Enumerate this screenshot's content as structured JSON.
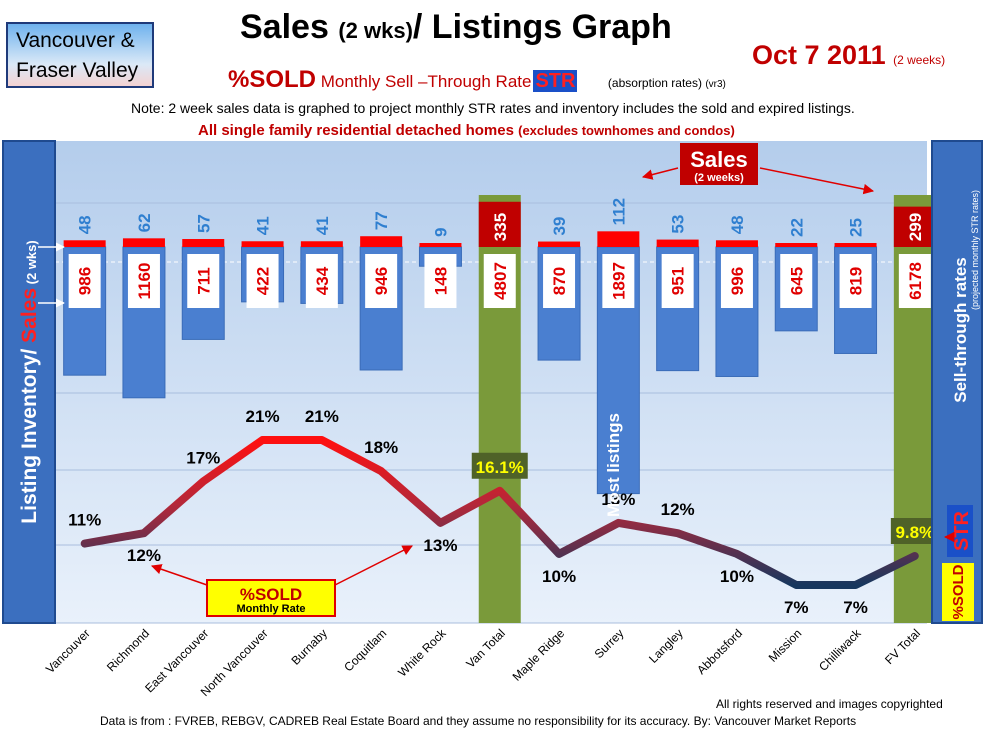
{
  "header": {
    "region_line1": "Vancouver &",
    "region_line2": "Fraser Valley",
    "title_a": "Sales ",
    "title_b": "(2 wks)",
    "title_c": "/ Listings Graph",
    "date": "Oct 7 2011",
    "date_note": "(2 weeks)",
    "sold_label": "%SOLD",
    "str_text": " Monthly Sell –Through Rate",
    "str_badge": "STR",
    "absorption": "(absorption rates)",
    "version": "(vr3)",
    "note": "Note: 2 week sales data is graphed to project monthly STR rates and inventory includes the sold and expired listings.",
    "subtitle_main": "All single family residential detached homes ",
    "subtitle_paren": "(excludes townhomes and condos)"
  },
  "left_panel": {
    "label_a": "Listing Inventory",
    "label_b": "/ ",
    "label_c": "Sales",
    "label_d": " (2 wks)"
  },
  "right_panel": {
    "label_main": "Sell-through rates",
    "label_note": "(projected monthly STR rates)",
    "str_badge": "STR",
    "sold_badge": "%SOLD"
  },
  "annotations": {
    "sales_label": "Sales",
    "sales_sub": "(2 weeks)",
    "sold_label": "%SOLD",
    "sold_sub": "Monthly Rate",
    "most_listings": "Most listings"
  },
  "footer": {
    "rights": "All rights reserved and  images copyrighted",
    "source": "Data is from : FVREB, REBGV, CADREB Real Estate Board and they assume no responsibility for its accuracy. By: Vancouver Market Reports"
  },
  "chart_data": {
    "type": "bar",
    "categories": [
      "Vancouver",
      "Richmond",
      "East Vancouver",
      "North Vancouver",
      "Burnaby",
      "Coquitlam",
      "White Rock",
      "Van Total",
      "Maple Ridge",
      "Surrey",
      "Langley",
      "Abbotsford",
      "Mission",
      "Chilliwack",
      "FV Total"
    ],
    "series": [
      {
        "name": "Sales",
        "values": [
          48,
          62,
          57,
          41,
          41,
          77,
          9,
          335,
          39,
          112,
          53,
          48,
          22,
          25,
          299
        ]
      },
      {
        "name": "Listing Inventory",
        "values": [
          986,
          1160,
          711,
          422,
          434,
          946,
          148,
          4807,
          870,
          1897,
          951,
          996,
          645,
          819,
          6178
        ]
      },
      {
        "name": "%SOLD",
        "values": [
          11,
          12,
          17,
          21,
          21,
          18,
          13,
          16.1,
          10,
          13,
          12,
          10,
          7,
          7,
          9.8
        ]
      }
    ],
    "sold_labels": [
      "11%",
      "12%",
      "17%",
      "21%",
      "21%",
      "18%",
      "13%",
      "16.1%",
      "10%",
      "13%",
      "12%",
      "10%",
      "7%",
      "7%",
      "9.8%"
    ],
    "total_columns": [
      "Van Total",
      "FV Total"
    ],
    "colors": {
      "sales": "#ff0000",
      "sales_total": "#c00000",
      "inventory": "#4a7fd0",
      "total_column": "#7a9a3a",
      "line_high": "#ff1010",
      "line_low": "#17375e",
      "panel_blue": "#3b6fbf",
      "plot_bg": "#c5d8f0"
    }
  }
}
